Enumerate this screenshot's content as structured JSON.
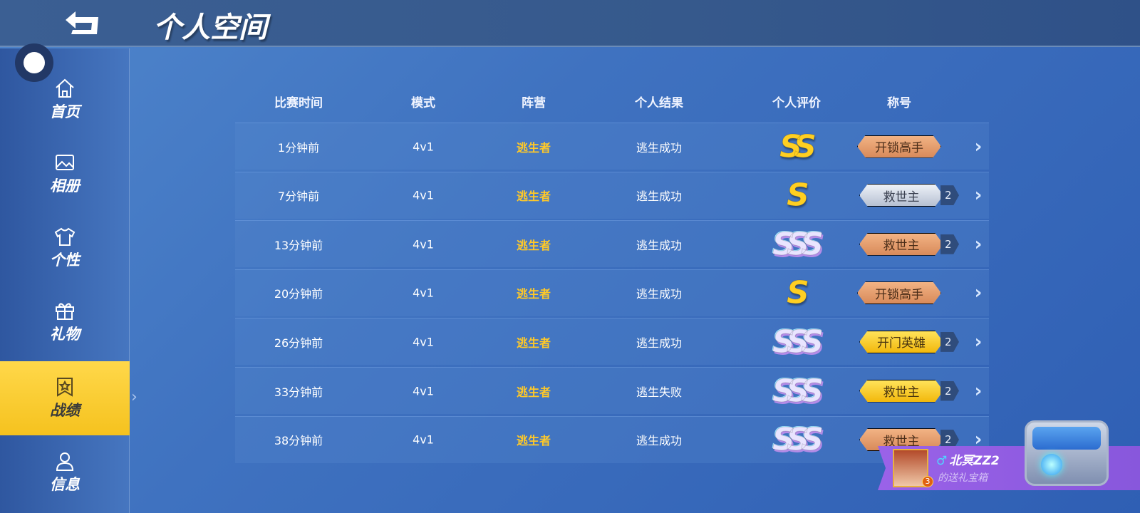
{
  "header": {
    "title": "个人空间",
    "back_icon": "back-arrow-icon"
  },
  "sidebar": {
    "items": [
      {
        "label": "首页",
        "icon": "home-icon",
        "active": false
      },
      {
        "label": "相册",
        "icon": "image-icon",
        "active": false
      },
      {
        "label": "个性",
        "icon": "shirt-icon",
        "active": false
      },
      {
        "label": "礼物",
        "icon": "gift-icon",
        "active": false
      },
      {
        "label": "战绩",
        "icon": "medal-icon",
        "active": true
      },
      {
        "label": "信息",
        "icon": "user-icon",
        "active": false
      }
    ]
  },
  "table": {
    "headers": [
      "比赛时间",
      "模式",
      "阵营",
      "个人结果",
      "个人评价",
      "称号"
    ],
    "rows": [
      {
        "time": "1分钟前",
        "mode": "4v1",
        "camp": "逃生者",
        "result": "逃生成功",
        "rating": "SS",
        "rating_style": "gold",
        "title": "开锁高手",
        "title_tier": "bronze",
        "count": ""
      },
      {
        "time": "7分钟前",
        "mode": "4v1",
        "camp": "逃生者",
        "result": "逃生成功",
        "rating": "S",
        "rating_style": "gold",
        "title": "救世主",
        "title_tier": "silver",
        "count": "2"
      },
      {
        "time": "13分钟前",
        "mode": "4v1",
        "camp": "逃生者",
        "result": "逃生成功",
        "rating": "SSS",
        "rating_style": "rainbow",
        "title": "救世主",
        "title_tier": "bronze",
        "count": "2"
      },
      {
        "time": "20分钟前",
        "mode": "4v1",
        "camp": "逃生者",
        "result": "逃生成功",
        "rating": "S",
        "rating_style": "gold",
        "title": "开锁高手",
        "title_tier": "bronze",
        "count": ""
      },
      {
        "time": "26分钟前",
        "mode": "4v1",
        "camp": "逃生者",
        "result": "逃生成功",
        "rating": "SSS",
        "rating_style": "rainbow",
        "title": "开门英雄",
        "title_tier": "gold",
        "count": "2"
      },
      {
        "time": "33分钟前",
        "mode": "4v1",
        "camp": "逃生者",
        "result": "逃生失败",
        "rating": "SSS",
        "rating_style": "rainbow",
        "title": "救世主",
        "title_tier": "gold",
        "count": "2"
      },
      {
        "time": "38分钟前",
        "mode": "4v1",
        "camp": "逃生者",
        "result": "逃生成功",
        "rating": "SSS",
        "rating_style": "rainbow",
        "title": "救世主",
        "title_tier": "bronze",
        "count": "2"
      }
    ]
  },
  "gift_banner": {
    "gender_symbol": "♂",
    "name": "北冥ZZ2",
    "subtitle": "的送礼宝箱",
    "level": "3"
  },
  "colors": {
    "camp": "#ffc928",
    "active_nav": "#f5c21e",
    "banner": "#9a62e8"
  }
}
